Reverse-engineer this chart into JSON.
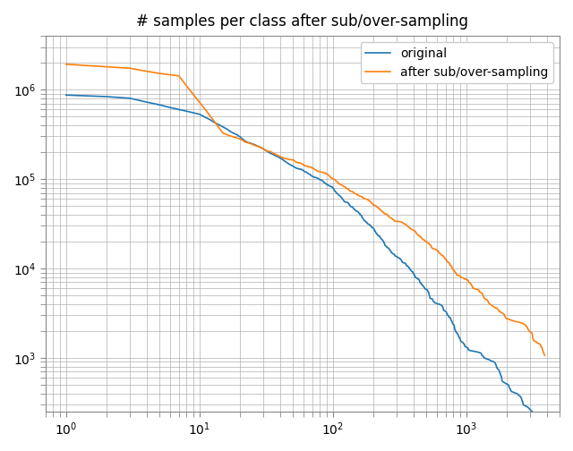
{
  "title": "# samples per class after sub/over-sampling",
  "line_original_color": "#1f77b4",
  "line_sampled_color": "#ff7f0e",
  "label_original": "original",
  "label_sampled": "after sub/over-sampling",
  "xlim": [
    0.7,
    5000
  ],
  "ylim": [
    250,
    4000000
  ],
  "grid": true,
  "n_classes": 3862,
  "background_color": "#ffffff",
  "grid_color": "#b0b0b0",
  "grid_linewidth": 0.5
}
